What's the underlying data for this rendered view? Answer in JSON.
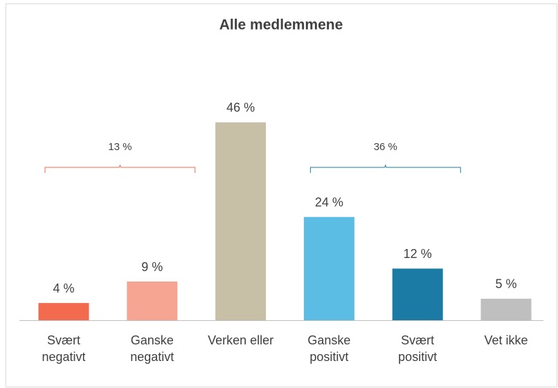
{
  "chart_data": {
    "type": "bar",
    "title": "Alle medlemmene",
    "categories": [
      "Svært\nnegativt",
      "Ganske\nnegativt",
      "Verken eller",
      "Ganske\npositivt",
      "Svært\npositivt",
      "Vet ikke"
    ],
    "values": [
      4,
      9,
      46,
      24,
      12,
      5
    ],
    "value_labels": [
      "4 %",
      "9 %",
      "46 %",
      "24 %",
      "12 %",
      "5 %"
    ],
    "colors": [
      "#f26b4f",
      "#f6a593",
      "#c8bfa7",
      "#5bbde3",
      "#1c7ba4",
      "#bfbfbf"
    ],
    "ylim": [
      0,
      50
    ],
    "annotations": [
      {
        "text": "13 %",
        "from": 0,
        "to": 1,
        "color": "#f26b4f"
      },
      {
        "text": "36 %",
        "from": 3,
        "to": 4,
        "color": "#1c7ba4"
      }
    ]
  }
}
